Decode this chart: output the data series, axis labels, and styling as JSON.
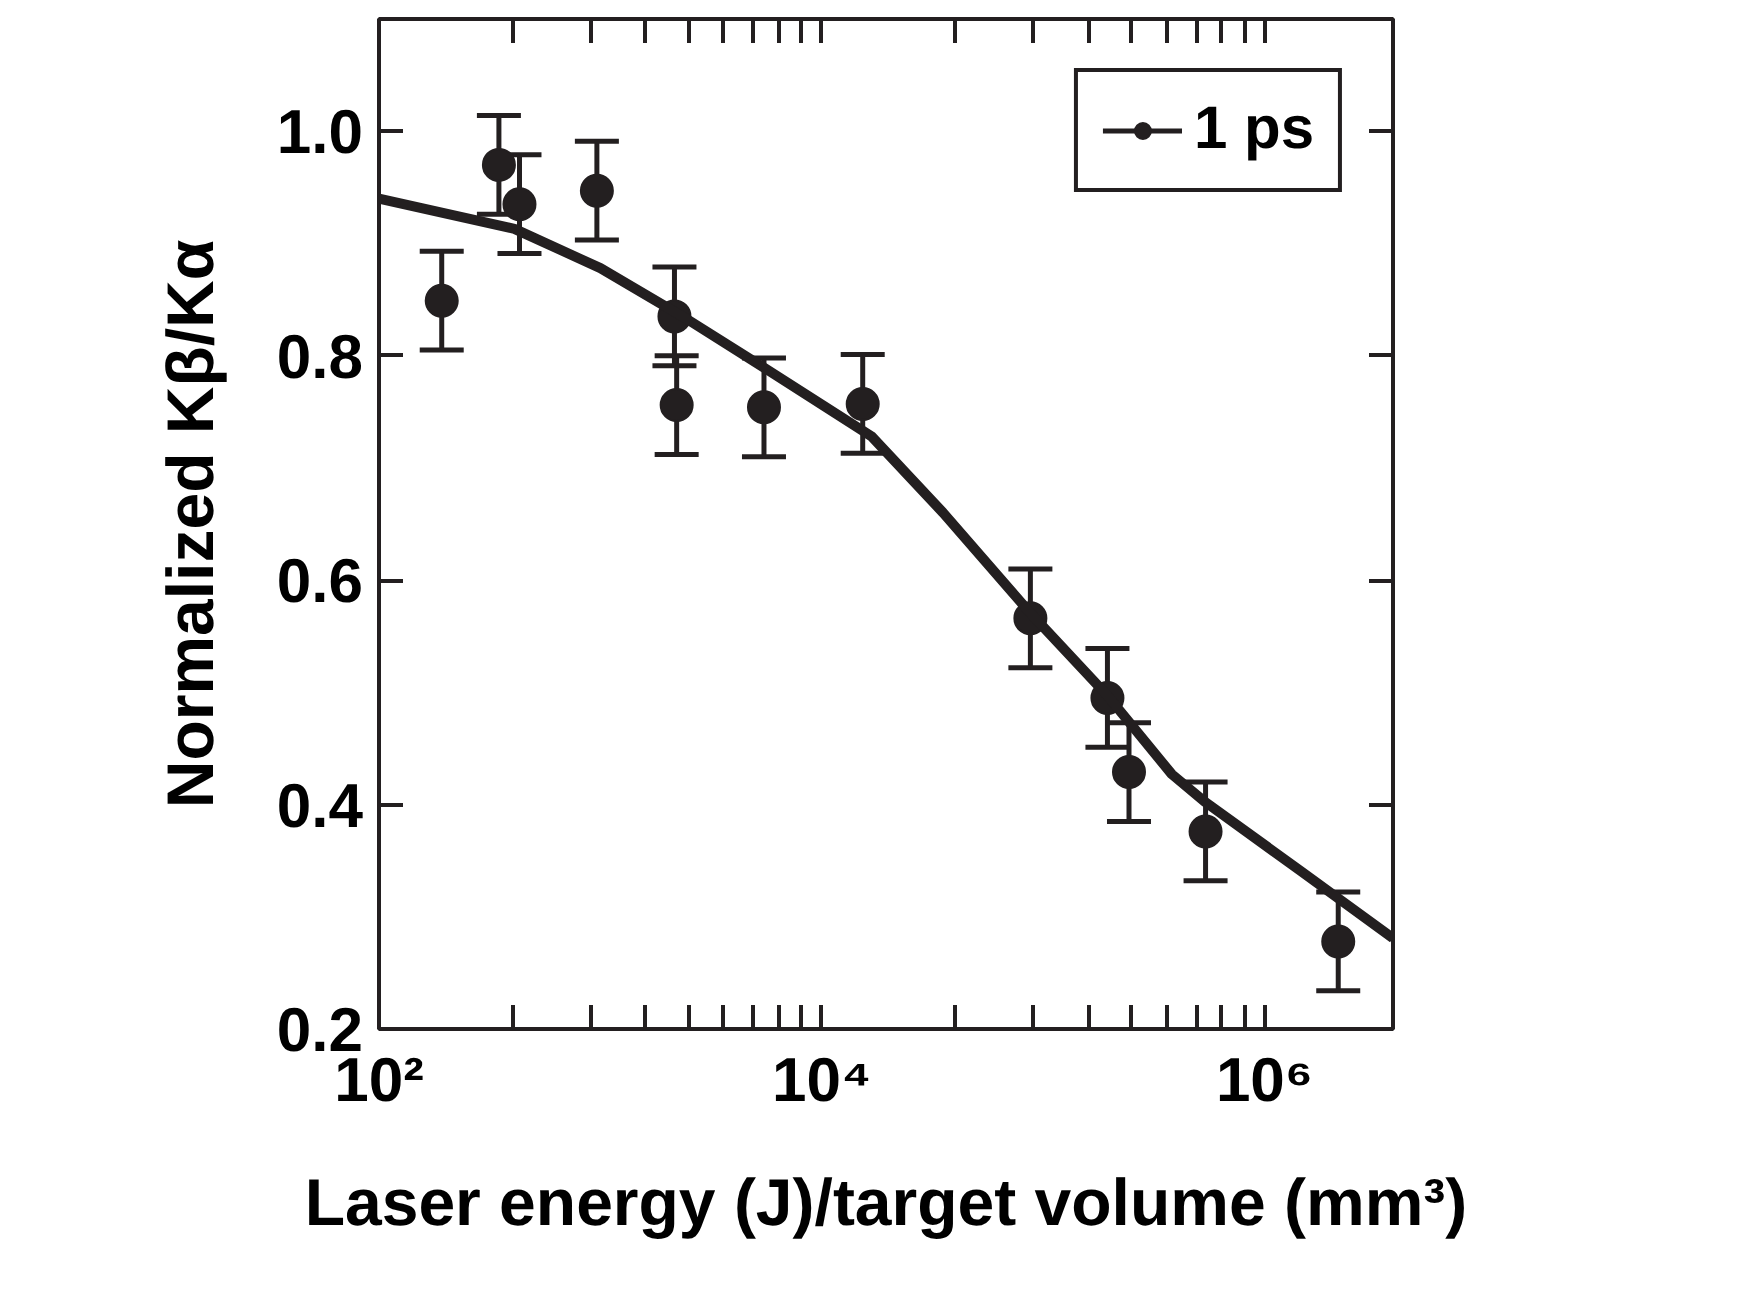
{
  "chart_data": {
    "type": "scatter",
    "xlabel": "Laser energy (J)/target volume (mm³)",
    "ylabel": "Normalized Kβ/Kα",
    "log": "x",
    "xlim": [
      100,
      3800000
    ],
    "ylim": [
      0.2,
      1.1
    ],
    "xticks": [
      {
        "value": 100,
        "label": "10²"
      },
      {
        "value": 400,
        "label": null
      },
      {
        "value": 900,
        "label": null
      },
      {
        "value": 1600,
        "label": null
      },
      {
        "value": 2500,
        "label": null
      },
      {
        "value": 3600,
        "label": null
      },
      {
        "value": 4900,
        "label": null
      },
      {
        "value": 6400,
        "label": null
      },
      {
        "value": 8100,
        "label": null
      },
      {
        "value": 10000,
        "label": "10⁴"
      },
      {
        "value": 40000,
        "label": null
      },
      {
        "value": 90000,
        "label": null
      },
      {
        "value": 160000,
        "label": null
      },
      {
        "value": 250000,
        "label": null
      },
      {
        "value": 360000,
        "label": null
      },
      {
        "value": 490000,
        "label": null
      },
      {
        "value": 640000,
        "label": null
      },
      {
        "value": 810000,
        "label": null
      },
      {
        "value": 1000000,
        "label": "10⁶"
      }
    ],
    "yticks": [
      0.2,
      0.4,
      0.6,
      0.8,
      {
        "value": 1.0,
        "label": "1.0"
      }
    ],
    "grid": false,
    "legend": "top right",
    "marker": "circle",
    "series": [
      {
        "name": "1 ps",
        "color": "#231f20",
        "x": [
          192,
          348,
          431,
          964,
          2160,
          2210,
          5480,
          15300,
          87500,
          195000,
          244000,
          541000,
          2150000
        ],
        "values": [
          0.849,
          0.97,
          0.935,
          0.947,
          0.835,
          0.756,
          0.754,
          0.757,
          0.566,
          0.495,
          0.429,
          0.376,
          0.278
        ],
        "errors": [
          0.044,
          0.044,
          0.044,
          0.044,
          0.044,
          0.044,
          0.044,
          0.044,
          0.044,
          0.044,
          0.044,
          0.044,
          0.044
        ]
      },
      {
        "type": "line",
        "color": "#231f20",
        "line_style": "solid",
        "marker": "none",
        "x": [
          100,
          409,
          1000,
          2440,
          5510,
          16800,
          35300,
          88000,
          195000,
          381000,
          541000,
          1450000,
          3800000
        ],
        "values": [
          0.94,
          0.913,
          0.878,
          0.833,
          0.789,
          0.728,
          0.66,
          0.57,
          0.497,
          0.427,
          0.402,
          0.341,
          0.281
        ]
      }
    ]
  }
}
